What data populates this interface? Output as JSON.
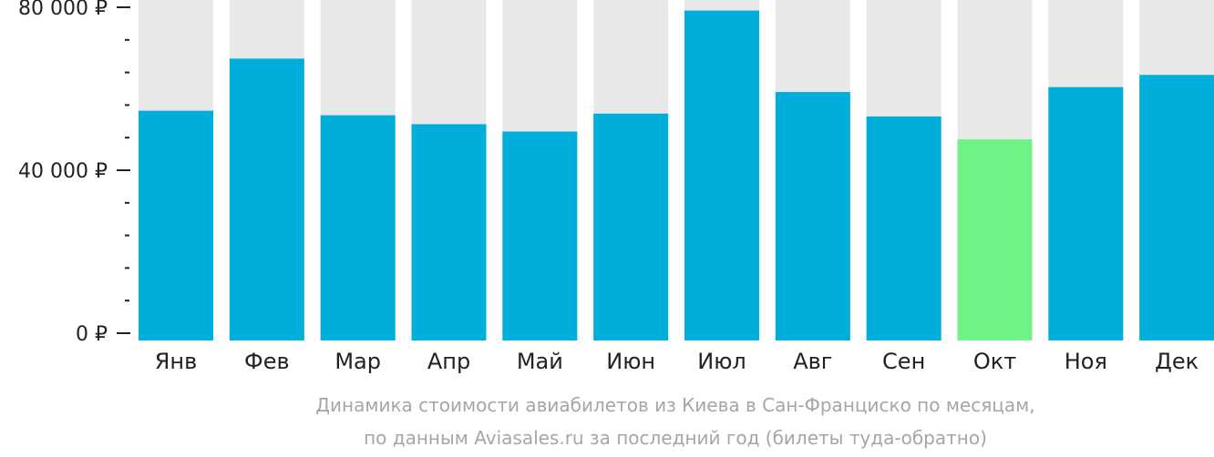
{
  "chart_data": {
    "type": "bar",
    "categories": [
      "Янв",
      "Фев",
      "Мар",
      "Апр",
      "Май",
      "Июн",
      "Июл",
      "Авг",
      "Сен",
      "Окт",
      "Ноя",
      "Дек"
    ],
    "values": [
      54600,
      67400,
      53500,
      51300,
      49500,
      53900,
      79200,
      59200,
      53200,
      47600,
      60400,
      63400
    ],
    "ylim": [
      0,
      82000
    ],
    "yticks": [
      0,
      40000,
      80000
    ],
    "ytick_labels": [
      "0 ₽",
      "40 000 ₽",
      "80 000 ₽"
    ],
    "minor_ytick_step": 8000,
    "highlight_index": 9,
    "title": "",
    "xlabel": "",
    "ylabel": "",
    "caption_lines": [
      "Динамика стоимости авиабилетов из Киева в Сан-Франциско по месяцам,",
      "по данным Aviasales.ru за последний год (билеты туда-обратно)"
    ],
    "grid": false,
    "colors": {
      "bar": "#00aedb",
      "highlight": "#6ff286",
      "background_bar": "#e8e8e8",
      "axis": "#222222",
      "text": "#222222",
      "caption": "#a6a6a6"
    }
  }
}
